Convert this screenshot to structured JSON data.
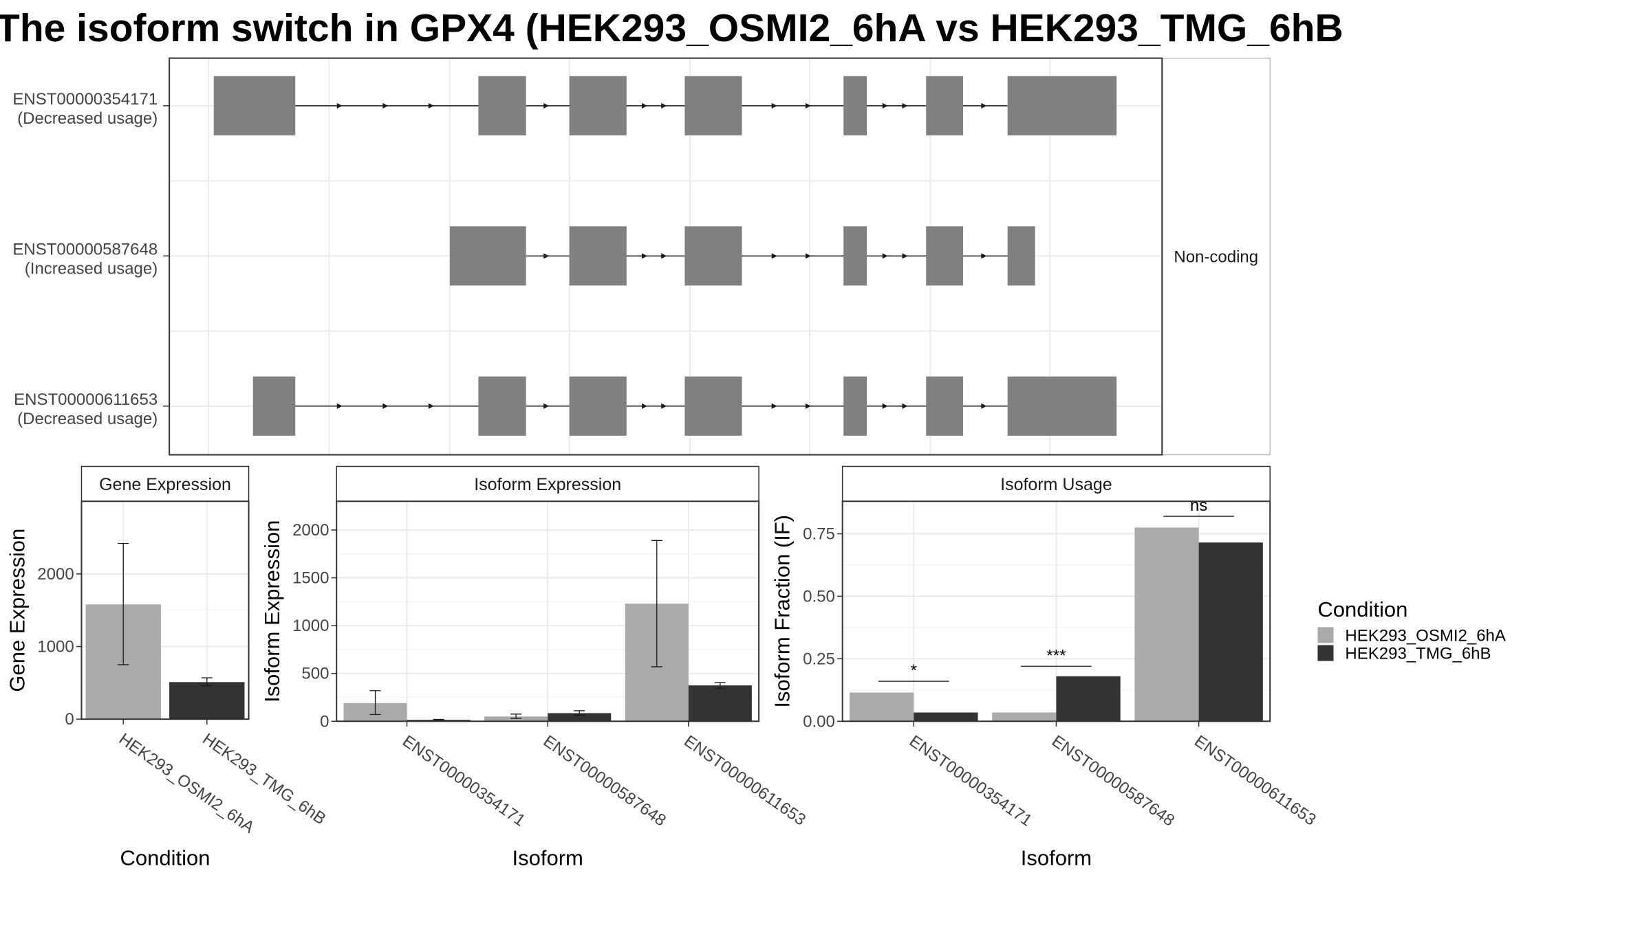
{
  "title": "The isoform switch in GPX4 (HEK293_OSMI2_6hA vs HEK293_TMG_6hB",
  "colors": {
    "condition_a": "#aaaaaa",
    "condition_b": "#333333",
    "exon": "#808080"
  },
  "chart_data": [
    {
      "type": "gene_structure",
      "tracks": [
        {
          "isoform": "ENST00000354171",
          "label_line1": "ENST00000354171",
          "label_line2": "(Decreased usage)",
          "exons": [
            [
              202,
              279
            ],
            [
              452,
              497
            ],
            [
              538,
              592
            ],
            [
              647,
              701
            ],
            [
              797,
              819
            ],
            [
              875,
              910
            ],
            [
              952,
              1055
            ]
          ]
        },
        {
          "isoform": "ENST00000587648",
          "label_line1": "ENST00000587648",
          "label_line2": "(Increased usage)",
          "exons": [
            [
              425,
              497
            ],
            [
              538,
              592
            ],
            [
              647,
              701
            ],
            [
              797,
              819
            ],
            [
              875,
              910
            ],
            [
              952,
              978
            ]
          ]
        },
        {
          "isoform": "ENST00000611653",
          "label_line1": "ENST00000611653",
          "label_line2": "(Decreased usage)",
          "exons": [
            [
              239,
              279
            ],
            [
              452,
              497
            ],
            [
              538,
              592
            ],
            [
              647,
              701
            ],
            [
              797,
              819
            ],
            [
              875,
              910
            ],
            [
              952,
              1055
            ]
          ]
        }
      ],
      "coding_groups": [
        {
          "label": "",
          "tracks": [
            0,
            2
          ]
        },
        {
          "label": "Non-coding",
          "tracks": [
            1
          ]
        }
      ]
    },
    {
      "type": "bar",
      "title": "Gene Expression",
      "xlabel": "Condition",
      "ylabel": "Gene Expression",
      "ylim": [
        0,
        3000
      ],
      "yticks": [
        0,
        1000,
        2000
      ],
      "categories": [
        "HEK293_OSMI2_6hA",
        "HEK293_TMG_6hB"
      ],
      "values": [
        1580,
        510
      ],
      "errors": [
        [
          750,
          2420
        ],
        [
          460,
          570
        ]
      ]
    },
    {
      "type": "bar",
      "title": "Isoform Expression",
      "xlabel": "Isoform",
      "ylabel": "Isoform Expression",
      "ylim": [
        0,
        2300
      ],
      "yticks": [
        0,
        500,
        1000,
        1500,
        2000
      ],
      "categories": [
        "ENST00000354171",
        "ENST00000587648",
        "ENST00000611653"
      ],
      "series": [
        {
          "name": "HEK293_OSMI2_6hA",
          "values": [
            190,
            50,
            1230
          ],
          "errors": [
            [
              70,
              320
            ],
            [
              30,
              75
            ],
            [
              570,
              1890
            ]
          ]
        },
        {
          "name": "HEK293_TMG_6hB",
          "values": [
            15,
            85,
            375
          ],
          "errors": [
            [
              10,
              20
            ],
            [
              65,
              110
            ],
            [
              345,
              405
            ]
          ]
        }
      ]
    },
    {
      "type": "bar",
      "title": "Isoform Usage",
      "xlabel": "Isoform",
      "ylabel": "Isoform Fraction (IF)",
      "ylim": [
        0,
        0.88
      ],
      "yticks": [
        "0.00",
        "0.25",
        "0.50",
        "0.75"
      ],
      "categories": [
        "ENST00000354171",
        "ENST00000587648",
        "ENST00000611653"
      ],
      "series": [
        {
          "name": "HEK293_OSMI2_6hA",
          "values": [
            0.115,
            0.035,
            0.775
          ]
        },
        {
          "name": "HEK293_TMG_6hB",
          "values": [
            0.035,
            0.18,
            0.715
          ]
        }
      ],
      "significance": [
        "*",
        "***",
        "ns"
      ],
      "significance_y": [
        0.16,
        0.22,
        0.82
      ]
    }
  ],
  "legend": {
    "title": "Condition",
    "placement": "right",
    "entries": [
      "HEK293_OSMI2_6hA",
      "HEK293_TMG_6hB"
    ]
  }
}
